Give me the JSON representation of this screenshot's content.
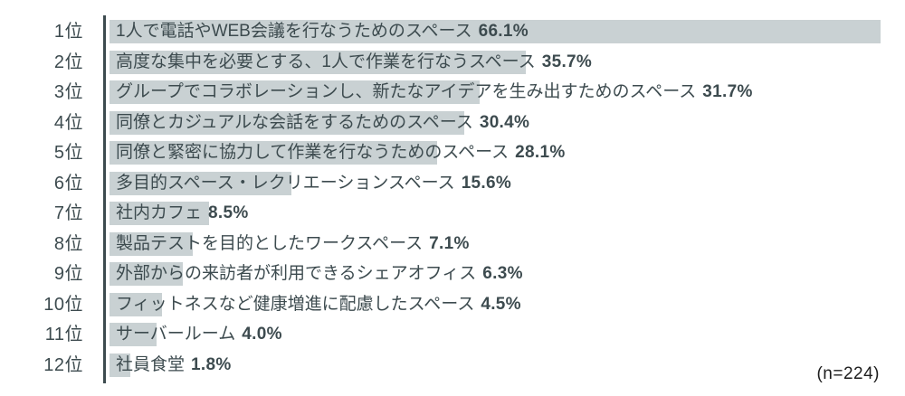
{
  "colors": {
    "bar_fill": "#c9d1d3",
    "text": "#3d4b4f",
    "axis_line": "#3d4b4f",
    "note_text": "#1d1d1d"
  },
  "chart_data": {
    "type": "bar",
    "orientation": "horizontal",
    "title": "",
    "xlabel": "",
    "ylabel": "",
    "grid": false,
    "legend": false,
    "xlim": [
      0,
      66.7
    ],
    "rank_labels": [
      "1位",
      "2位",
      "3位",
      "4位",
      "5位",
      "6位",
      "7位",
      "8位",
      "9位",
      "10位",
      "11位",
      "12位"
    ],
    "categories": [
      "1人で電話やWEB会議を行なうためのスペース",
      "高度な集中を必要とする、1人で作業を行なうスペース",
      "グループでコラボレーションし、新たなアイデアを生み出すためのスペース",
      "同僚とカジュアルな会話をするためのスペース",
      "同僚と緊密に協力して作業を行なうためのスペース",
      "多目的スペース・レクリエーションスペース",
      "社内カフェ",
      "製品テストを目的としたワークスペース",
      "外部からの来訪者が利用できるシェアオフィス",
      "フィットネスなど健康増進に配慮したスペース",
      "サーバールーム",
      "社員食堂"
    ],
    "values": [
      66.1,
      35.7,
      31.7,
      30.4,
      28.1,
      15.6,
      8.5,
      7.1,
      6.3,
      4.5,
      4.0,
      1.8
    ],
    "value_suffix": "%",
    "annotation": "(n=224)"
  }
}
